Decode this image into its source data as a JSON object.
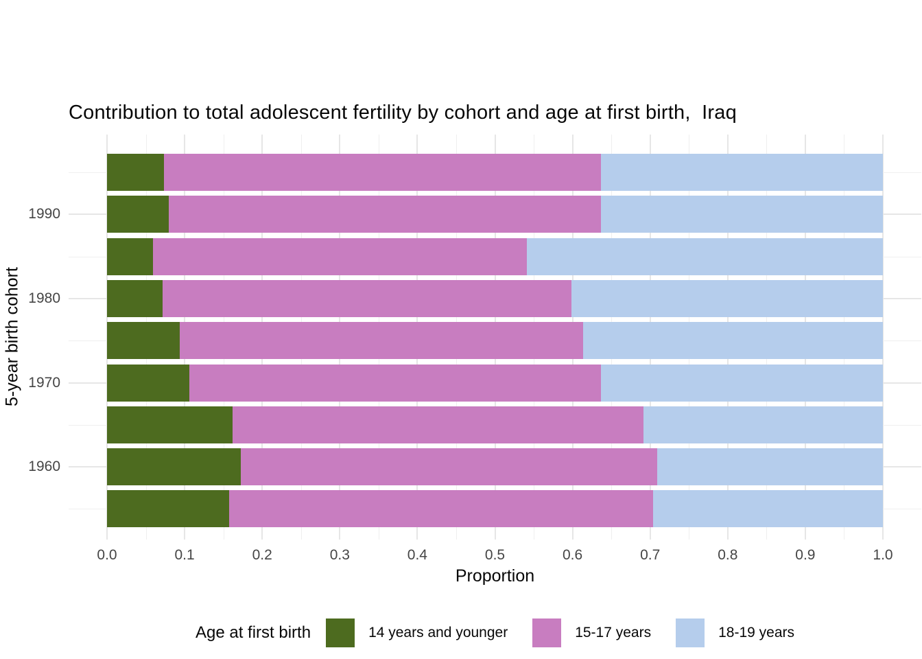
{
  "title": "Contribution to total adolescent fertility by cohort and age at first birth,  Iraq",
  "chart_data": {
    "type": "bar",
    "orientation": "horizontal",
    "stacked": true,
    "title": "Contribution to total adolescent fertility by cohort and age at first birth,  Iraq",
    "xlabel": "Proportion",
    "ylabel": "5-year birth cohort",
    "xlim": [
      0.0,
      1.0
    ],
    "x_tick_labels": [
      "0.0",
      "0.1",
      "0.2",
      "0.3",
      "0.4",
      "0.5",
      "0.6",
      "0.7",
      "0.8",
      "0.9",
      "1.0"
    ],
    "x_tick_values": [
      0.0,
      0.1,
      0.2,
      0.3,
      0.4,
      0.5,
      0.6,
      0.7,
      0.8,
      0.9,
      1.0
    ],
    "y_major_tick_labels": [
      "1990",
      "1980",
      "1970",
      "1960"
    ],
    "categories_top_to_bottom": [
      1995,
      1990,
      1985,
      1980,
      1975,
      1970,
      1965,
      1960,
      1955
    ],
    "grid": true,
    "legend_position": "bottom",
    "legend_title": "Age at first birth",
    "series": [
      {
        "name": "14 years and younger",
        "color": "#4d6b1f",
        "values": [
          0.073,
          0.08,
          0.059,
          0.072,
          0.094,
          0.106,
          0.162,
          0.172,
          0.157
        ]
      },
      {
        "name": "15-17 years",
        "color": "#c87dc0",
        "values": [
          0.564,
          0.557,
          0.482,
          0.527,
          0.52,
          0.531,
          0.529,
          0.537,
          0.547
        ]
      },
      {
        "name": "18-19 years",
        "color": "#b5cdec",
        "values": [
          0.363,
          0.363,
          0.459,
          0.401,
          0.386,
          0.363,
          0.309,
          0.291,
          0.296
        ]
      }
    ]
  },
  "colors": {
    "background": "#ffffff",
    "grid_major": "#e6e6e6",
    "grid_minor": "#efefef",
    "tick_label": "#454545",
    "text": "#070707"
  }
}
